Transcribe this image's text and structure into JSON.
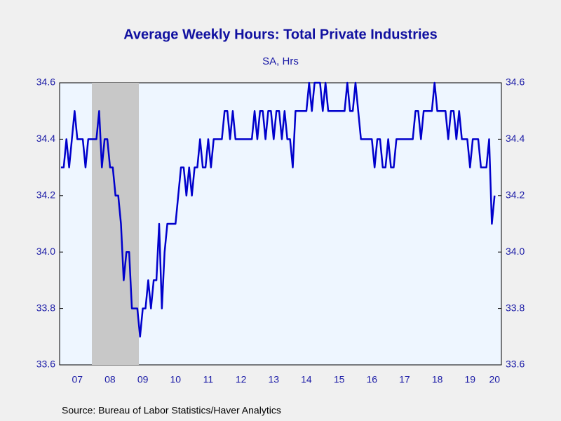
{
  "chart_data": {
    "type": "line",
    "title": "Average Weekly Hours: Total Private Industries",
    "subtitle": "SA, Hrs",
    "source": "Source:  Bureau of Labor Statistics/Haver Analytics",
    "categories": [
      null,
      null,
      null,
      null,
      null,
      null,
      "07",
      null,
      null,
      null,
      null,
      null,
      null,
      null,
      null,
      null,
      null,
      null,
      "08",
      null,
      null,
      null,
      null,
      null,
      null,
      null,
      null,
      null,
      null,
      null,
      "09",
      null,
      null,
      null,
      null,
      null,
      null,
      null,
      null,
      null,
      null,
      null,
      "10",
      null,
      null,
      null,
      null,
      null,
      null,
      null,
      null,
      null,
      null,
      null,
      "11",
      null,
      null,
      null,
      null,
      null,
      null,
      null,
      null,
      null,
      null,
      null,
      "12",
      null,
      null,
      null,
      null,
      null,
      null,
      null,
      null,
      null,
      null,
      null,
      "13",
      null,
      null,
      null,
      null,
      null,
      null,
      null,
      null,
      null,
      null,
      null,
      "14",
      null,
      null,
      null,
      null,
      null,
      null,
      null,
      null,
      null,
      null,
      null,
      "15",
      null,
      null,
      null,
      null,
      null,
      null,
      null,
      null,
      null,
      null,
      null,
      "16",
      null,
      null,
      null,
      null,
      null,
      null,
      null,
      null,
      null,
      null,
      null,
      "17",
      null,
      null,
      null,
      null,
      null,
      null,
      null,
      null,
      null,
      null,
      null,
      "18",
      null,
      null,
      null,
      null,
      null,
      null,
      null,
      null,
      null,
      null,
      null,
      "19",
      null,
      null,
      null,
      null,
      null,
      null,
      null,
      null,
      "20"
    ],
    "series": [
      {
        "name": "Average Weekly Hours",
        "color": "#0000cc",
        "values": [
          34.3,
          34.3,
          34.4,
          34.3,
          34.4,
          34.5,
          34.4,
          34.4,
          34.4,
          34.3,
          34.4,
          34.4,
          34.4,
          34.4,
          34.5,
          34.3,
          34.4,
          34.4,
          34.3,
          34.3,
          34.2,
          34.2,
          34.1,
          33.9,
          34.0,
          34.0,
          33.8,
          33.8,
          33.8,
          33.7,
          33.8,
          33.8,
          33.9,
          33.8,
          33.9,
          33.9,
          34.1,
          33.8,
          34.0,
          34.1,
          34.1,
          34.1,
          34.1,
          34.2,
          34.3,
          34.3,
          34.2,
          34.3,
          34.2,
          34.3,
          34.3,
          34.4,
          34.3,
          34.3,
          34.4,
          34.3,
          34.4,
          34.4,
          34.4,
          34.4,
          34.5,
          34.5,
          34.4,
          34.5,
          34.4,
          34.4,
          34.4,
          34.4,
          34.4,
          34.4,
          34.4,
          34.5,
          34.4,
          34.5,
          34.5,
          34.4,
          34.5,
          34.5,
          34.4,
          34.5,
          34.5,
          34.4,
          34.5,
          34.4,
          34.4,
          34.3,
          34.5,
          34.5,
          34.5,
          34.5,
          34.5,
          34.6,
          34.5,
          34.6,
          34.6,
          34.6,
          34.5,
          34.6,
          34.5,
          34.5,
          34.5,
          34.5,
          34.5,
          34.5,
          34.5,
          34.6,
          34.5,
          34.5,
          34.6,
          34.5,
          34.4,
          34.4,
          34.4,
          34.4,
          34.4,
          34.3,
          34.4,
          34.4,
          34.3,
          34.3,
          34.4,
          34.3,
          34.3,
          34.4,
          34.4,
          34.4,
          34.4,
          34.4,
          34.4,
          34.4,
          34.5,
          34.5,
          34.4,
          34.5,
          34.5,
          34.5,
          34.5,
          34.6,
          34.5,
          34.5,
          34.5,
          34.5,
          34.4,
          34.5,
          34.5,
          34.4,
          34.5,
          34.4,
          34.4,
          34.4,
          34.3,
          34.4,
          34.4,
          34.4,
          34.3,
          34.3,
          34.3,
          34.4,
          34.1,
          34.2
        ]
      }
    ],
    "ylim": [
      33.6,
      34.6
    ],
    "yticks": [
      {
        "value": 33.6,
        "label": "33.6"
      },
      {
        "value": 33.8,
        "label": "33.8"
      },
      {
        "value": 34.0,
        "label": "34.0"
      },
      {
        "value": 34.2,
        "label": "34.2"
      },
      {
        "value": 34.4,
        "label": "34.4"
      },
      {
        "value": 34.6,
        "label": "34.6"
      }
    ],
    "y2lim": [
      33.6,
      34.6
    ],
    "y2ticks": [
      {
        "value": 33.6,
        "label": "33.6"
      },
      {
        "value": 33.8,
        "label": "33.8"
      },
      {
        "value": 34.0,
        "label": "34.0"
      },
      {
        "value": 34.2,
        "label": "34.2"
      },
      {
        "value": 34.4,
        "label": "34.4"
      },
      {
        "value": 34.6,
        "label": "34.6"
      }
    ]
  }
}
